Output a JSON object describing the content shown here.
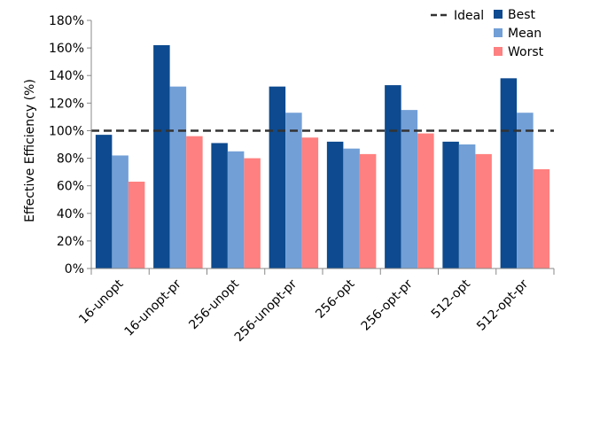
{
  "chart_data": {
    "type": "bar",
    "ylabel": "Effective Efficiency (%)",
    "xlabel": "",
    "ylim": [
      0,
      180
    ],
    "yticks": [
      0,
      20,
      40,
      60,
      80,
      100,
      120,
      140,
      160,
      180
    ],
    "ytick_labels": [
      "0%",
      "20%",
      "40%",
      "60%",
      "80%",
      "100%",
      "120%",
      "140%",
      "160%",
      "180%"
    ],
    "categories": [
      "16-unopt",
      "16-unopt-pr",
      "256-unopt",
      "256-unopt-pr",
      "256-opt",
      "256-opt-pr",
      "512-opt",
      "512-opt-pr"
    ],
    "series": [
      {
        "name": "Best",
        "color": "#0d4a8f",
        "values": [
          97,
          162,
          91,
          132,
          92,
          133,
          92,
          138
        ]
      },
      {
        "name": "Mean",
        "color": "#729fd6",
        "values": [
          82,
          132,
          85,
          113,
          87,
          115,
          90,
          113
        ]
      },
      {
        "name": "Worst",
        "color": "#ff8080",
        "values": [
          63,
          96,
          80,
          95,
          83,
          98,
          83,
          72
        ]
      }
    ],
    "reference_line": {
      "name": "Ideal",
      "value": 100,
      "color": "#333333",
      "style": "dashed"
    },
    "grid": false,
    "legend_position": "top-right"
  }
}
